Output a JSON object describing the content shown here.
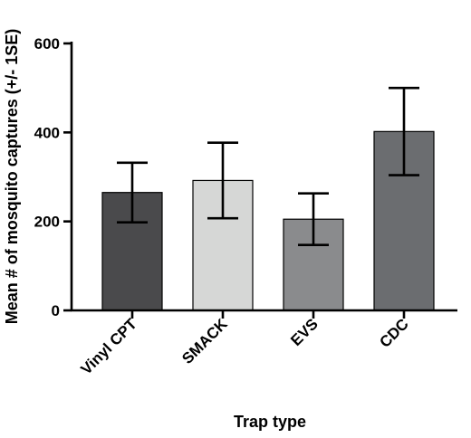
{
  "chart_data": {
    "type": "bar",
    "title": "",
    "xlabel": "Trap type",
    "ylabel": "Mean # of mosquito captures (+/- 1SE)",
    "categories": [
      "Vinyl CPT",
      "SMACK",
      "EVS",
      "CDC"
    ],
    "values": [
      265,
      292,
      205,
      402
    ],
    "error": [
      67,
      85,
      58,
      98
    ],
    "bar_colors": [
      "#4a4a4c",
      "#d6d7d6",
      "#8a8b8d",
      "#6b6d70"
    ],
    "ylim": [
      0,
      600
    ],
    "yticks": [
      0,
      200,
      400,
      600
    ],
    "grid": false,
    "legend": "none"
  }
}
